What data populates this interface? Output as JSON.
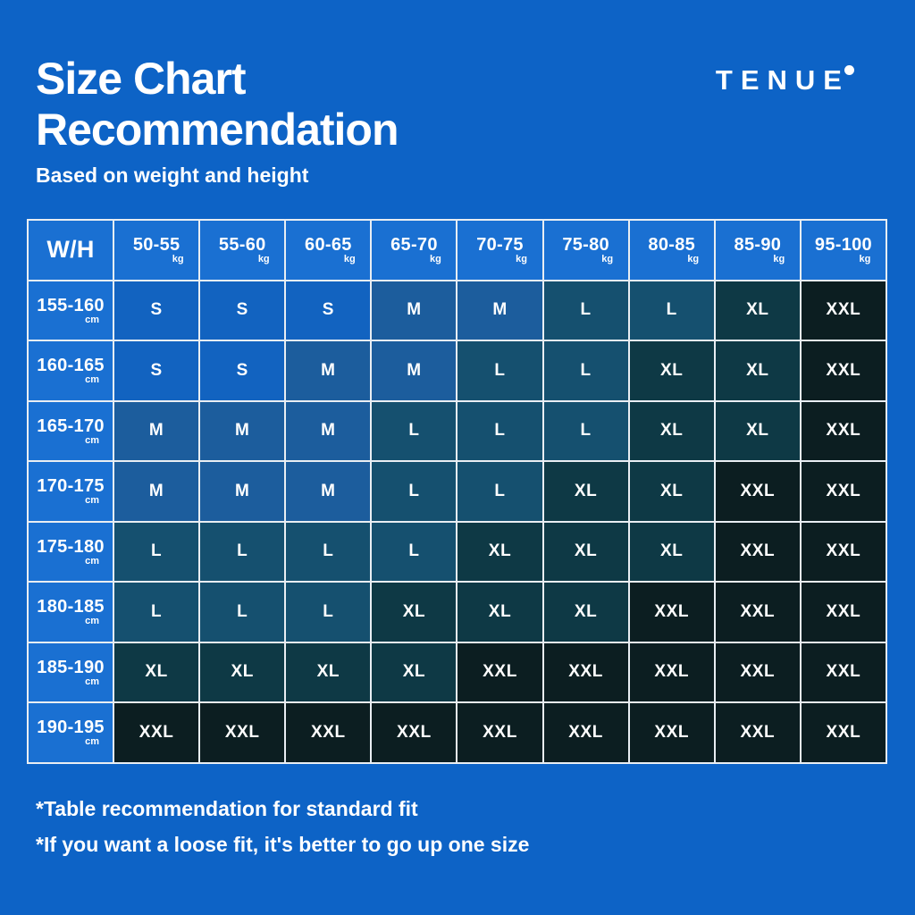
{
  "page": {
    "background_color": "#0d63c6",
    "border_color": "#e9eef3",
    "text_color": "#ffffff",
    "title_line1": "Size Chart",
    "title_line2": "Recommendation",
    "subtitle": "Based on weight and height",
    "brand": "TENUE",
    "footnote1": "*Table recommendation for standard fit",
    "footnote2": "*If you want a loose fit, it's better to go up one size"
  },
  "chart_data": {
    "type": "table",
    "title": "Size Chart Recommendation",
    "subtitle": "Based on weight and height",
    "corner_label": "W/H",
    "weight_unit": "kg",
    "height_unit": "cm",
    "weight_columns_kg": [
      "50-55",
      "55-60",
      "60-65",
      "65-70",
      "70-75",
      "75-80",
      "80-85",
      "85-90",
      "95-100"
    ],
    "height_rows_cm": [
      "155-160",
      "160-165",
      "165-170",
      "170-175",
      "175-180",
      "180-185",
      "185-190",
      "190-195"
    ],
    "sizes": [
      [
        "S",
        "S",
        "S",
        "M",
        "M",
        "L",
        "L",
        "XL",
        "XXL"
      ],
      [
        "S",
        "S",
        "M",
        "M",
        "L",
        "L",
        "XL",
        "XL",
        "XXL"
      ],
      [
        "M",
        "M",
        "M",
        "L",
        "L",
        "L",
        "XL",
        "XL",
        "XXL"
      ],
      [
        "M",
        "M",
        "M",
        "L",
        "L",
        "XL",
        "XL",
        "XXL",
        "XXL"
      ],
      [
        "L",
        "L",
        "L",
        "L",
        "XL",
        "XL",
        "XL",
        "XXL",
        "XXL"
      ],
      [
        "L",
        "L",
        "L",
        "XL",
        "XL",
        "XL",
        "XXL",
        "XXL",
        "XXL"
      ],
      [
        "XL",
        "XL",
        "XL",
        "XL",
        "XXL",
        "XXL",
        "XXL",
        "XXL",
        "XXL"
      ],
      [
        "XXL",
        "XXL",
        "XXL",
        "XXL",
        "XXL",
        "XXL",
        "XXL",
        "XXL",
        "XXL"
      ]
    ],
    "header_cell_color": "#1a70d2",
    "size_colors": {
      "S": "#1263c0",
      "M": "#1c5d9d",
      "L": "#15506f",
      "XL": "#0e3945",
      "XXL": "#0c1e21"
    },
    "grid": true,
    "legend_position": "none"
  }
}
